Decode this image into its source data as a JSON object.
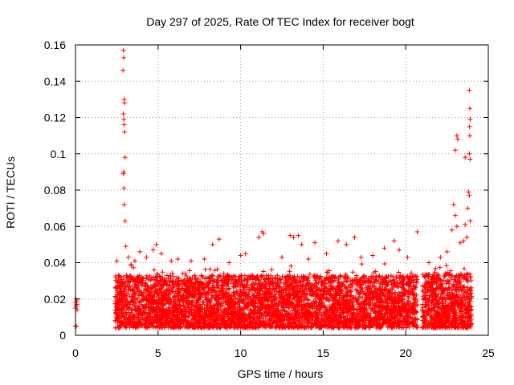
{
  "chart_data": {
    "type": "scatter",
    "title": "Day 297 of 2025, Rate Of TEC Index for receiver bogt",
    "xlabel": "GPS time / hours",
    "ylabel": "ROTI / TECUs",
    "xlim": [
      0,
      25
    ],
    "ylim": [
      0,
      0.16
    ],
    "xticks": [
      0,
      5,
      10,
      15,
      20,
      25
    ],
    "xtick_labels": [
      "0",
      "5",
      "10",
      "15",
      "20",
      "25"
    ],
    "yticks": [
      0,
      0.02,
      0.04,
      0.06,
      0.08,
      0.1,
      0.12,
      0.14,
      0.16
    ],
    "ytick_labels": [
      "0",
      "0.02",
      "0.04",
      "0.06",
      "0.08",
      "0.1",
      "0.12",
      "0.14",
      "0.16"
    ],
    "grid": true,
    "marker": "+",
    "color": "#ff0000",
    "series": [
      {
        "name": "ROTI",
        "points": [
          [
            0.0,
            0.005
          ],
          [
            0.0,
            0.015
          ],
          [
            0.02,
            0.018
          ],
          [
            0.03,
            0.02
          ],
          [
            0.05,
            0.016
          ],
          [
            0.05,
            0.005
          ],
          [
            0.08,
            0.017
          ],
          [
            0.08,
            0.019
          ],
          [
            0.1,
            0.014
          ],
          [
            2.9,
            0.157
          ],
          [
            2.92,
            0.153
          ],
          [
            2.88,
            0.146
          ],
          [
            2.95,
            0.13
          ],
          [
            2.97,
            0.128
          ],
          [
            2.9,
            0.122
          ],
          [
            2.93,
            0.119
          ],
          [
            2.95,
            0.116
          ],
          [
            2.97,
            0.112
          ],
          [
            3.0,
            0.098
          ],
          [
            2.92,
            0.09
          ],
          [
            2.9,
            0.089
          ],
          [
            2.93,
            0.081
          ],
          [
            2.95,
            0.072
          ],
          [
            3.0,
            0.063
          ],
          [
            3.05,
            0.049
          ],
          [
            2.5,
            0.041
          ],
          [
            3.2,
            0.043
          ],
          [
            3.6,
            0.041
          ],
          [
            3.9,
            0.046
          ],
          [
            4.3,
            0.043
          ],
          [
            4.7,
            0.047
          ],
          [
            4.9,
            0.05
          ],
          [
            5.2,
            0.045
          ],
          [
            5.8,
            0.041
          ],
          [
            6.2,
            0.042
          ],
          [
            7.0,
            0.041
          ],
          [
            7.8,
            0.042
          ],
          [
            8.3,
            0.05
          ],
          [
            8.7,
            0.053
          ],
          [
            9.3,
            0.04
          ],
          [
            10.0,
            0.044
          ],
          [
            10.3,
            0.045
          ],
          [
            11.3,
            0.057
          ],
          [
            11.1,
            0.054
          ],
          [
            11.4,
            0.056
          ],
          [
            12.5,
            0.043
          ],
          [
            13.0,
            0.055
          ],
          [
            13.2,
            0.054
          ],
          [
            13.5,
            0.055
          ],
          [
            13.7,
            0.05
          ],
          [
            14.1,
            0.042
          ],
          [
            14.5,
            0.051
          ],
          [
            15.2,
            0.045
          ],
          [
            15.9,
            0.052
          ],
          [
            16.4,
            0.05
          ],
          [
            16.9,
            0.054
          ],
          [
            17.3,
            0.043
          ],
          [
            18.0,
            0.044
          ],
          [
            18.7,
            0.048
          ],
          [
            19.3,
            0.052
          ],
          [
            19.6,
            0.047
          ],
          [
            20.1,
            0.043
          ],
          [
            20.7,
            0.057
          ],
          [
            21.4,
            0.04
          ],
          [
            22.1,
            0.043
          ],
          [
            22.5,
            0.046
          ],
          [
            22.9,
            0.072
          ],
          [
            23.0,
            0.066
          ],
          [
            22.8,
            0.058
          ],
          [
            23.1,
            0.06
          ],
          [
            23.3,
            0.051
          ],
          [
            23.5,
            0.052
          ],
          [
            23.6,
            0.061
          ],
          [
            23.7,
            0.054
          ],
          [
            23.85,
            0.135
          ],
          [
            23.88,
            0.125
          ],
          [
            23.9,
            0.119
          ],
          [
            23.86,
            0.115
          ],
          [
            23.88,
            0.11
          ],
          [
            23.85,
            0.1
          ],
          [
            23.9,
            0.097
          ],
          [
            23.1,
            0.11
          ],
          [
            23.15,
            0.108
          ],
          [
            23.0,
            0.102
          ],
          [
            23.6,
            0.098
          ],
          [
            23.8,
            0.079
          ],
          [
            23.85,
            0.077
          ],
          [
            23.9,
            0.063
          ],
          [
            23.75,
            0.07
          ]
        ]
      }
    ],
    "density_bands": [
      {
        "x_start": 2.4,
        "x_end": 20.7,
        "y_low": 0.004,
        "y_high": 0.033
      },
      {
        "x_start": 21.0,
        "x_end": 24.0,
        "y_low": 0.004,
        "y_high": 0.034
      }
    ]
  }
}
